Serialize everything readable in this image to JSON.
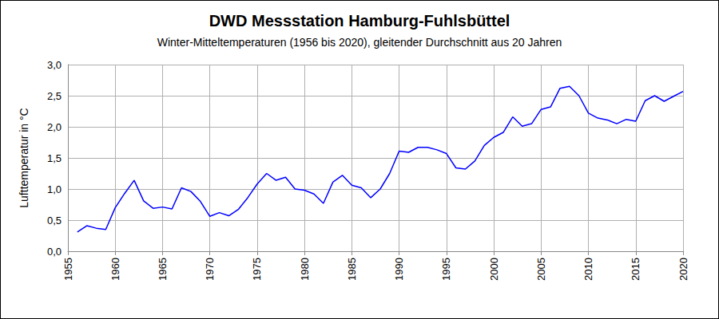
{
  "chart_data": {
    "type": "line",
    "title": "DWD Messstation Hamburg-Fuhlsbüttel",
    "subtitle": "Winter-Mitteltemperaturen (1956 bis 2020), gleitender Durchschnitt aus 20 Jahren",
    "y_label": "Lufttemperatur in °C",
    "x": [
      1956,
      1957,
      1958,
      1959,
      1960,
      1961,
      1962,
      1963,
      1964,
      1965,
      1966,
      1967,
      1968,
      1969,
      1970,
      1971,
      1972,
      1973,
      1974,
      1975,
      1976,
      1977,
      1978,
      1979,
      1980,
      1981,
      1982,
      1983,
      1984,
      1985,
      1986,
      1987,
      1988,
      1989,
      1990,
      1991,
      1992,
      1993,
      1994,
      1995,
      1996,
      1997,
      1998,
      1999,
      2000,
      2001,
      2002,
      2003,
      2004,
      2005,
      2006,
      2007,
      2008,
      2009,
      2010,
      2011,
      2012,
      2013,
      2014,
      2015,
      2016,
      2017,
      2018,
      2019,
      2020
    ],
    "values": [
      0.31,
      0.41,
      0.37,
      0.35,
      0.7,
      0.93,
      1.14,
      0.81,
      0.69,
      0.71,
      0.68,
      1.02,
      0.96,
      0.8,
      0.56,
      0.62,
      0.57,
      0.67,
      0.86,
      1.08,
      1.25,
      1.14,
      1.19,
      1.0,
      0.98,
      0.92,
      0.77,
      1.11,
      1.22,
      1.06,
      1.02,
      0.86,
      1.0,
      1.25,
      1.61,
      1.59,
      1.67,
      1.67,
      1.63,
      1.57,
      1.34,
      1.32,
      1.45,
      1.7,
      1.83,
      1.91,
      2.16,
      2.01,
      2.05,
      2.28,
      2.32,
      2.62,
      2.65,
      2.5,
      2.22,
      2.14,
      2.11,
      2.05,
      2.12,
      2.09,
      2.42,
      2.5,
      2.41,
      2.49,
      2.57
    ],
    "color": "#0000ff",
    "xlim": [
      1955,
      2020
    ],
    "xticks": [
      1955,
      1960,
      1965,
      1970,
      1975,
      1980,
      1985,
      1990,
      1995,
      2000,
      2005,
      2010,
      2015,
      2020
    ],
    "ylim": [
      0,
      3
    ],
    "yticks": [
      {
        "value": 0,
        "label": "0,0"
      },
      {
        "value": 0.5,
        "label": "0,5"
      },
      {
        "value": 1,
        "label": "1,0"
      },
      {
        "value": 1.5,
        "label": "1,5"
      },
      {
        "value": 2,
        "label": "2,0"
      },
      {
        "value": 2.5,
        "label": "2,5"
      },
      {
        "value": 3,
        "label": "3,0"
      }
    ],
    "grid": true
  }
}
